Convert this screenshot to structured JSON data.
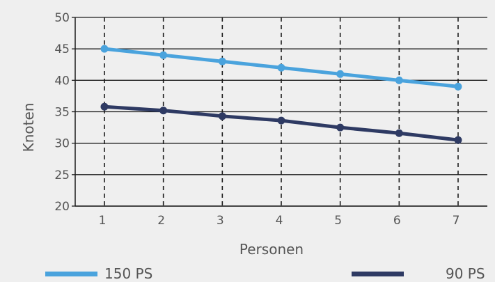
{
  "chart_data": {
    "type": "line",
    "title": "",
    "xlabel": "Personen",
    "ylabel": "Knoten",
    "x": [
      1,
      2,
      3,
      4,
      5,
      6,
      7
    ],
    "ylim": [
      20,
      50
    ],
    "yticks": [
      20,
      25,
      30,
      35,
      40,
      45,
      50
    ],
    "xticks": [
      "1",
      "2",
      "3",
      "4",
      "5",
      "6",
      "7"
    ],
    "grid": {
      "horizontal": "solid",
      "vertical": "dashed"
    },
    "legend_position": "bottom",
    "series": [
      {
        "name": "150 PS",
        "color": "#4aa3dd",
        "values": [
          45,
          44,
          43,
          42,
          41,
          40,
          39
        ]
      },
      {
        "name": "90 PS",
        "color": "#2e3a63",
        "values": [
          35.8,
          35.2,
          34.3,
          33.6,
          32.5,
          31.6,
          30.5
        ]
      }
    ]
  }
}
